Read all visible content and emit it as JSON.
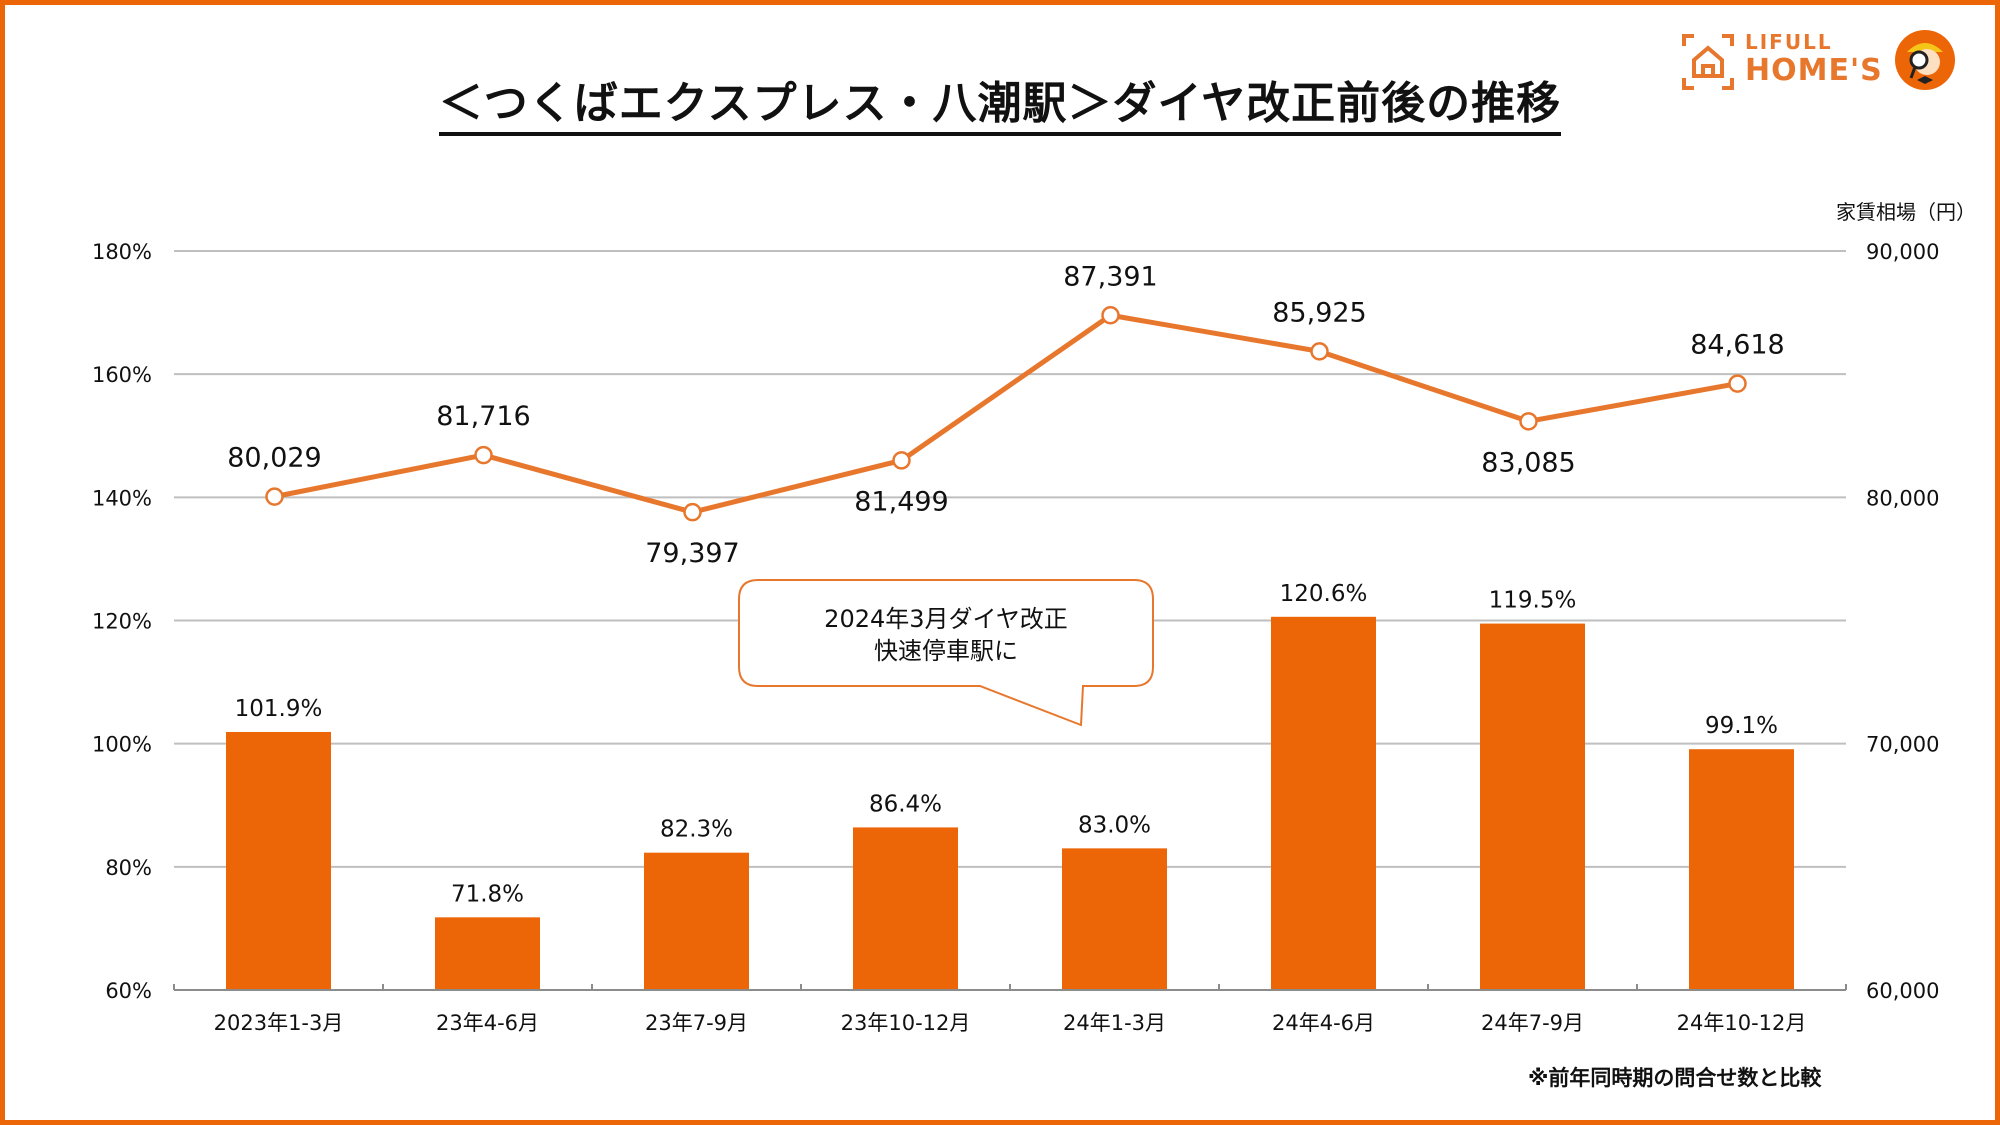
{
  "title": "＜つくばエクスプレス・八潮駅＞ダイヤ改正前後の推移",
  "logo": {
    "line1": "LIFULL",
    "line2": "HOME'S",
    "icon": "house-frame-icon",
    "mascot": "mascot-icon"
  },
  "right_axis_title": "家賃相場（円）",
  "footnote": "※前年同時期の問合せ数と比較",
  "callout": {
    "line1": "2024年3月ダイヤ改正",
    "line2": "快速停車駅に"
  },
  "colors": {
    "bar": "#ec6608",
    "line": "#e8772e",
    "border": "#ec6608",
    "grid": "#bfbfbf"
  },
  "chart_data": {
    "type": "bar+line",
    "title": "＜つくばエクスプレス・八潮駅＞ダイヤ改正前後の推移",
    "categories": [
      "2023年1-3月",
      "23年4-6月",
      "23年7-9月",
      "23年10-12月",
      "24年1-3月",
      "24年4-6月",
      "24年7-9月",
      "24年10-12月"
    ],
    "series": [
      {
        "name": "問合せ数（前年同時期比）",
        "type": "bar",
        "axis": "left",
        "values": [
          101.9,
          71.8,
          82.3,
          86.4,
          83.0,
          120.6,
          119.5,
          99.1
        ],
        "labels": [
          "101.9%",
          "71.8%",
          "82.3%",
          "86.4%",
          "83.0%",
          "120.6%",
          "119.5%",
          "99.1%"
        ]
      },
      {
        "name": "家賃相場（円）",
        "type": "line",
        "axis": "right",
        "values": [
          80029,
          81716,
          79397,
          81499,
          87391,
          85925,
          83085,
          84618
        ],
        "labels": [
          "80,029",
          "81,716",
          "79,397",
          "81,499",
          "87,391",
          "85,925",
          "83,085",
          "84,618"
        ],
        "label_positions": [
          "above",
          "above",
          "below",
          "below",
          "above",
          "above",
          "below",
          "above"
        ]
      }
    ],
    "left_axis": {
      "min": 60,
      "max": 180,
      "step": 20,
      "ticks": [
        "60%",
        "80%",
        "100%",
        "120%",
        "140%",
        "160%",
        "180%"
      ]
    },
    "right_axis": {
      "min": 60000,
      "max": 90000,
      "step": 10000,
      "ticks": [
        "60,000",
        "70,000",
        "80,000",
        "90,000"
      ],
      "label": "家賃相場（円）"
    },
    "grid": true,
    "legend": "none"
  }
}
